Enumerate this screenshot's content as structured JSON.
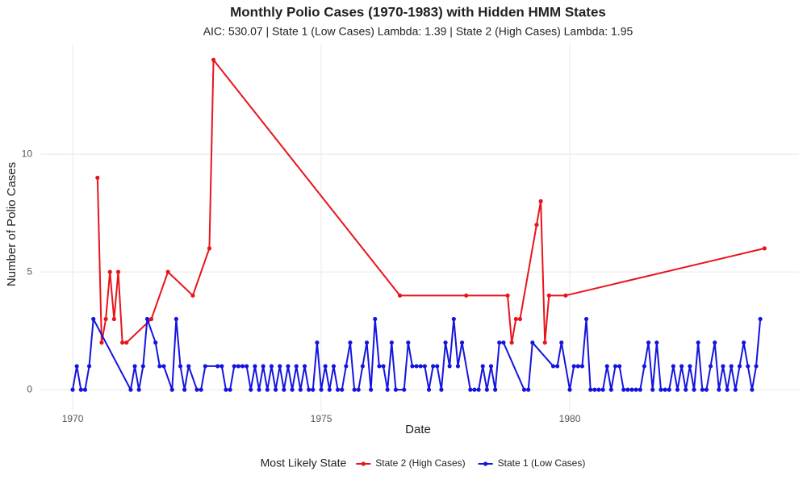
{
  "chart_data": {
    "type": "line",
    "title": "Monthly Polio Cases (1970-1983) with Hidden HMM States",
    "subtitle": "AIC: 530.07 | State 1 (Low Cases) Lambda: 1.39 | State 2 (High Cases) Lambda: 1.95",
    "x_label": "Date",
    "y_label": "Number of Polio Cases",
    "legend_title": "Most Likely State",
    "legend_position": "bottom",
    "grid": true,
    "xlim": [
      1969.35,
      1984.61
    ],
    "xticks": [
      1970,
      1975,
      1980
    ],
    "ylim": [
      -0.92,
      14.66
    ],
    "yticks": [
      0,
      5,
      10
    ],
    "series": [
      {
        "name": "State 2 (High Cases)",
        "color": "#e8141c",
        "x": [
          1970.5,
          1970.583,
          1970.667,
          1970.75,
          1970.833,
          1970.917,
          1971,
          1971.083,
          1971.583,
          1971.917,
          1972.417,
          1972.75,
          1972.833,
          1976.583,
          1977.917,
          1978.75,
          1978.833,
          1978.917,
          1979,
          1979.333,
          1979.417,
          1979.5,
          1979.583,
          1979.917,
          1983.917
        ],
        "values": [
          9,
          2,
          3,
          5,
          3,
          5,
          2,
          2,
          3,
          5,
          4,
          6,
          14,
          4,
          4,
          4,
          2,
          3,
          3,
          7,
          8,
          2,
          4,
          4,
          6
        ]
      },
      {
        "name": "State 1 (Low Cases)",
        "color": "#1414e0",
        "x": [
          1970,
          1970.083,
          1970.167,
          1970.25,
          1970.333,
          1970.417,
          1971.167,
          1971.25,
          1971.333,
          1971.417,
          1971.5,
          1971.667,
          1971.75,
          1971.833,
          1972,
          1972.083,
          1972.167,
          1972.25,
          1972.333,
          1972.5,
          1972.583,
          1972.667,
          1972.917,
          1973,
          1973.083,
          1973.167,
          1973.25,
          1973.333,
          1973.417,
          1973.5,
          1973.583,
          1973.667,
          1973.75,
          1973.833,
          1973.917,
          1974,
          1974.083,
          1974.167,
          1974.25,
          1974.333,
          1974.417,
          1974.5,
          1974.583,
          1974.667,
          1974.75,
          1974.833,
          1974.917,
          1975,
          1975.083,
          1975.167,
          1975.25,
          1975.333,
          1975.417,
          1975.5,
          1975.583,
          1975.667,
          1975.75,
          1975.833,
          1975.917,
          1976,
          1976.083,
          1976.167,
          1976.25,
          1976.333,
          1976.417,
          1976.5,
          1976.667,
          1976.75,
          1976.833,
          1976.917,
          1977,
          1977.083,
          1977.167,
          1977.25,
          1977.333,
          1977.417,
          1977.5,
          1977.583,
          1977.667,
          1977.75,
          1977.833,
          1978,
          1978.083,
          1978.167,
          1978.25,
          1978.333,
          1978.417,
          1978.5,
          1978.583,
          1978.667,
          1979.083,
          1979.167,
          1979.25,
          1979.667,
          1979.75,
          1979.833,
          1980,
          1980.083,
          1980.167,
          1980.25,
          1980.333,
          1980.417,
          1980.5,
          1980.583,
          1980.667,
          1980.75,
          1980.833,
          1980.917,
          1981,
          1981.083,
          1981.167,
          1981.25,
          1981.333,
          1981.417,
          1981.5,
          1981.583,
          1981.667,
          1981.75,
          1981.833,
          1981.917,
          1982,
          1982.083,
          1982.167,
          1982.25,
          1982.333,
          1982.417,
          1982.5,
          1982.583,
          1982.667,
          1982.75,
          1982.833,
          1982.917,
          1983,
          1983.083,
          1983.167,
          1983.25,
          1983.333,
          1983.417,
          1983.5,
          1983.583,
          1983.667,
          1983.75,
          1983.833
        ],
        "values": [
          0,
          1,
          0,
          0,
          1,
          3,
          0,
          1,
          0,
          1,
          3,
          2,
          1,
          1,
          0,
          3,
          1,
          0,
          1,
          0,
          0,
          1,
          1,
          1,
          0,
          0,
          1,
          1,
          1,
          1,
          0,
          1,
          0,
          1,
          0,
          1,
          0,
          1,
          0,
          1,
          0,
          1,
          0,
          1,
          0,
          0,
          2,
          0,
          1,
          0,
          1,
          0,
          0,
          1,
          2,
          0,
          0,
          1,
          2,
          0,
          3,
          1,
          1,
          0,
          2,
          0,
          0,
          2,
          1,
          1,
          1,
          1,
          0,
          1,
          1,
          0,
          2,
          1,
          3,
          1,
          2,
          0,
          0,
          0,
          1,
          0,
          1,
          0,
          2,
          2,
          0,
          0,
          2,
          1,
          1,
          2,
          0,
          1,
          1,
          1,
          3,
          0,
          0,
          0,
          0,
          1,
          0,
          1,
          1,
          0,
          0,
          0,
          0,
          0,
          1,
          2,
          0,
          2,
          0,
          0,
          0,
          1,
          0,
          1,
          0,
          1,
          0,
          2,
          0,
          0,
          1,
          2,
          0,
          1,
          0,
          1,
          0,
          1,
          2,
          1,
          0,
          1,
          3
        ]
      }
    ]
  }
}
